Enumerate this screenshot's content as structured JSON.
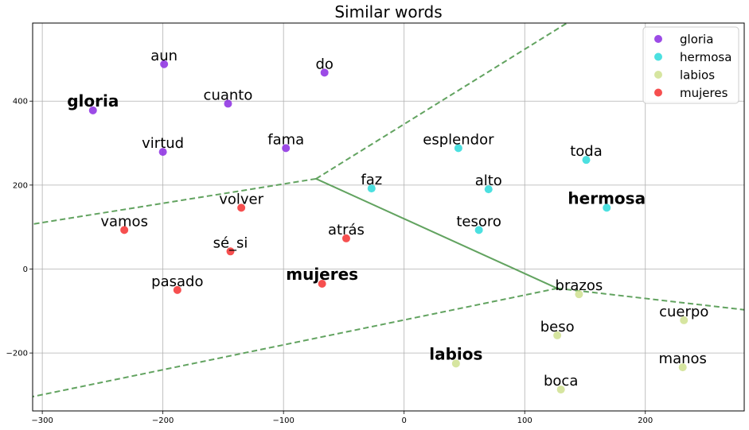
{
  "chart_data": {
    "type": "scatter",
    "title": "Similar words",
    "xlabel": "",
    "ylabel": "",
    "xlim": [
      -308,
      282
    ],
    "ylim": [
      -338,
      586
    ],
    "xticks": [
      -300,
      -200,
      -100,
      0,
      100,
      200
    ],
    "yticks": [
      -200,
      0,
      200,
      400
    ],
    "grid": true,
    "legend_position": "top-right",
    "series": [
      {
        "name": "gloria",
        "color": "#8b2be2",
        "points": [
          {
            "label": "gloria",
            "x": -258,
            "y": 378,
            "key": true
          },
          {
            "label": "aun",
            "x": -199,
            "y": 488
          },
          {
            "label": "do",
            "x": -66,
            "y": 468
          },
          {
            "label": "cuanto",
            "x": -146,
            "y": 394
          },
          {
            "label": "virtud",
            "x": -200,
            "y": 279
          },
          {
            "label": "fama",
            "x": -98,
            "y": 288
          }
        ]
      },
      {
        "name": "hermosa",
        "color": "#2ddbdb",
        "points": [
          {
            "label": "hermosa",
            "x": 168,
            "y": 146,
            "key": true
          },
          {
            "label": "esplendor",
            "x": 45,
            "y": 288
          },
          {
            "label": "toda",
            "x": 151,
            "y": 260
          },
          {
            "label": "faz",
            "x": -27,
            "y": 192
          },
          {
            "label": "alto",
            "x": 70,
            "y": 190
          },
          {
            "label": "tesoro",
            "x": 62,
            "y": 93
          }
        ]
      },
      {
        "name": "labios",
        "color": "#cfe08f",
        "points": [
          {
            "label": "labios",
            "x": 43,
            "y": -225,
            "key": true
          },
          {
            "label": "brazos",
            "x": 145,
            "y": -60
          },
          {
            "label": "cuerpo",
            "x": 232,
            "y": -122
          },
          {
            "label": "beso",
            "x": 127,
            "y": -158
          },
          {
            "label": "manos",
            "x": 231,
            "y": -234
          },
          {
            "label": "boca",
            "x": 130,
            "y": -287
          }
        ]
      },
      {
        "name": "mujeres",
        "color": "#f53030",
        "points": [
          {
            "label": "mujeres",
            "x": -68,
            "y": -35,
            "key": true
          },
          {
            "label": "volver",
            "x": -135,
            "y": 146
          },
          {
            "label": "vamos",
            "x": -232,
            "y": 93
          },
          {
            "label": "atrás",
            "x": -48,
            "y": 73
          },
          {
            "label": "sé_si",
            "x": -144,
            "y": 42
          },
          {
            "label": "pasado",
            "x": -188,
            "y": -50
          }
        ]
      }
    ],
    "boundaries": [
      {
        "style": "dashed",
        "points": [
          [
            -73,
            215
          ],
          [
            -308,
            107
          ]
        ]
      },
      {
        "style": "dashed",
        "points": [
          [
            -73,
            215
          ],
          [
            135,
            586
          ]
        ]
      },
      {
        "style": "solid",
        "points": [
          [
            -73,
            215
          ],
          [
            127,
            -46
          ]
        ]
      },
      {
        "style": "dashed",
        "points": [
          [
            127,
            -46
          ],
          [
            282,
            -97
          ]
        ]
      },
      {
        "style": "dashed",
        "points": [
          [
            127,
            -46
          ],
          [
            -308,
            -304
          ]
        ]
      }
    ],
    "boundary_color": "#5a9e57"
  }
}
